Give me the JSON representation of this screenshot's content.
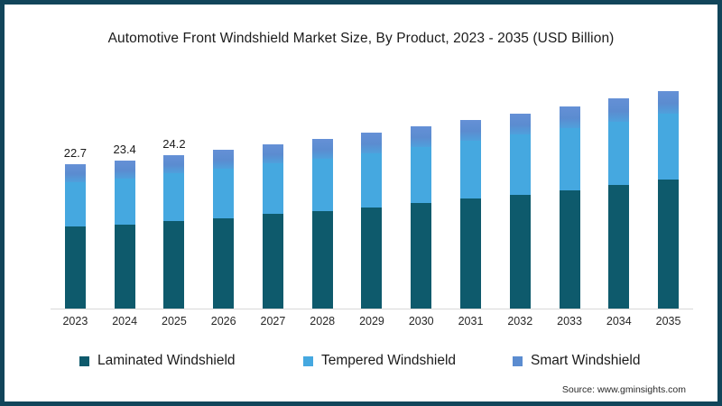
{
  "title": "Automotive Front Windshield Market Size, By Product, 2023 - 2035 (USD Billion)",
  "source": "Source: www.gminsights.com",
  "frame": {
    "border_color": "#11455a",
    "background": "#ffffff"
  },
  "chart_data": {
    "type": "bar",
    "stacked": true,
    "title": "Automotive Front Windshield Market Size, By Product, 2023 - 2035 (USD Billion)",
    "unit": "USD Billion",
    "categories": [
      "2023",
      "2024",
      "2025",
      "2026",
      "2027",
      "2028",
      "2029",
      "2030",
      "2031",
      "2032",
      "2033",
      "2034",
      "2035"
    ],
    "series": [
      {
        "name": "Laminated Windshield",
        "color": "#0e5a6c",
        "values": [
          12.9,
          13.3,
          13.8,
          14.3,
          14.9,
          15.4,
          16.0,
          16.6,
          17.3,
          18.0,
          18.7,
          19.5,
          20.4
        ]
      },
      {
        "name": "Tempered Windshield",
        "color": "#45a8e0",
        "values": [
          7.0,
          7.2,
          7.5,
          7.7,
          8.0,
          8.3,
          8.5,
          8.9,
          9.1,
          9.4,
          9.7,
          10.0,
          10.3
        ]
      },
      {
        "name": "Smart Windshield",
        "color": "#5b8cd0",
        "values": [
          2.8,
          2.9,
          2.9,
          3.0,
          3.0,
          3.1,
          3.2,
          3.2,
          3.3,
          3.4,
          3.5,
          3.6,
          3.6
        ]
      }
    ],
    "totals": [
      22.7,
      23.4,
      24.2,
      25.0,
      25.9,
      26.8,
      27.7,
      28.7,
      29.7,
      30.8,
      31.9,
      33.1,
      34.3
    ],
    "total_labels": [
      "22.7",
      "23.4",
      "24.2",
      "",
      "",
      "",
      "",
      "",
      "",
      "",
      "",
      "",
      ""
    ],
    "xlabel": "",
    "ylabel": "",
    "ylim": [
      0,
      36
    ],
    "grid": false,
    "legend_position": "bottom",
    "source": "Source: www.gminsights.com"
  }
}
